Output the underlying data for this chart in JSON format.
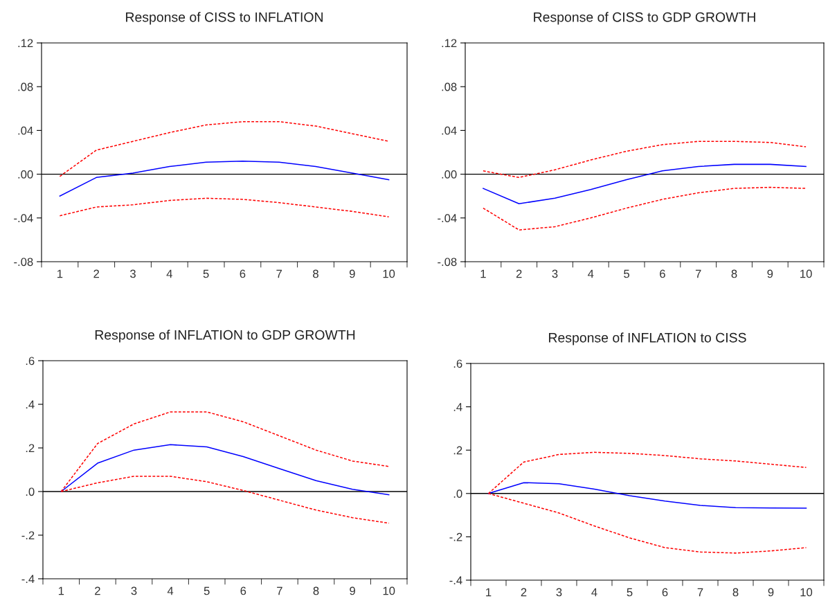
{
  "chart_data": [
    {
      "type": "line",
      "title": "Response of CISS to INFLATION",
      "categories": [
        "1",
        "2",
        "3",
        "4",
        "5",
        "6",
        "7",
        "8",
        "9",
        "10"
      ],
      "series": [
        {
          "color": "#0000ff",
          "line_style": "solid",
          "values": [
            -0.02,
            -0.003,
            0.001,
            0.007,
            0.011,
            0.012,
            0.011,
            0.007,
            0.001,
            -0.005
          ]
        },
        {
          "color": "#ff0000",
          "line_style": "dashed",
          "values": [
            -0.002,
            0.022,
            0.03,
            0.038,
            0.045,
            0.048,
            0.048,
            0.044,
            0.037,
            0.03
          ]
        },
        {
          "color": "#ff0000",
          "line_style": "dashed",
          "values": [
            -0.038,
            -0.03,
            -0.028,
            -0.024,
            -0.022,
            -0.023,
            -0.026,
            -0.03,
            -0.034,
            -0.039
          ]
        }
      ],
      "ylim": [
        -0.08,
        0.12
      ],
      "yticks": [
        {
          "value": -0.08,
          "label": "-.08"
        },
        {
          "value": -0.04,
          "label": "-.04"
        },
        {
          "value": 0,
          "label": ".00"
        },
        {
          "value": 0.04,
          "label": ".04"
        },
        {
          "value": 0.08,
          "label": ".08"
        },
        {
          "value": 0.12,
          "label": ".12"
        }
      ],
      "ref_lines": [
        {
          "axis": "y",
          "value": 0,
          "color": "#000000"
        }
      ],
      "grid": false,
      "legend": false
    },
    {
      "type": "line",
      "title": "Response of CISS to GDP GROWTH",
      "categories": [
        "1",
        "2",
        "3",
        "4",
        "5",
        "6",
        "7",
        "8",
        "9",
        "10"
      ],
      "series": [
        {
          "color": "#0000ff",
          "line_style": "solid",
          "values": [
            -0.013,
            -0.027,
            -0.022,
            -0.014,
            -0.005,
            0.003,
            0.007,
            0.009,
            0.009,
            0.007
          ]
        },
        {
          "color": "#ff0000",
          "line_style": "dashed",
          "values": [
            0.003,
            -0.003,
            0.004,
            0.013,
            0.021,
            0.027,
            0.03,
            0.03,
            0.029,
            0.025
          ]
        },
        {
          "color": "#ff0000",
          "line_style": "dashed",
          "values": [
            -0.031,
            -0.051,
            -0.048,
            -0.04,
            -0.031,
            -0.023,
            -0.017,
            -0.013,
            -0.012,
            -0.013
          ]
        }
      ],
      "ylim": [
        -0.08,
        0.12
      ],
      "yticks": [
        {
          "value": -0.08,
          "label": "-.08"
        },
        {
          "value": -0.04,
          "label": "-.04"
        },
        {
          "value": 0,
          "label": ".00"
        },
        {
          "value": 0.04,
          "label": ".04"
        },
        {
          "value": 0.08,
          "label": ".08"
        },
        {
          "value": 0.12,
          "label": ".12"
        }
      ],
      "ref_lines": [
        {
          "axis": "y",
          "value": 0,
          "color": "#000000"
        }
      ],
      "grid": false,
      "legend": false
    },
    {
      "type": "line",
      "title": "Response of INFLATION to GDP GROWTH",
      "categories": [
        "1",
        "2",
        "3",
        "4",
        "5",
        "6",
        "7",
        "8",
        "9",
        "10"
      ],
      "series": [
        {
          "color": "#0000ff",
          "line_style": "solid",
          "values": [
            0,
            0.13,
            0.19,
            0.215,
            0.205,
            0.16,
            0.105,
            0.05,
            0.01,
            -0.015
          ]
        },
        {
          "color": "#ff0000",
          "line_style": "dashed",
          "values": [
            0,
            0.22,
            0.31,
            0.365,
            0.365,
            0.32,
            0.255,
            0.19,
            0.14,
            0.115
          ]
        },
        {
          "color": "#ff0000",
          "line_style": "dashed",
          "values": [
            0,
            0.04,
            0.07,
            0.07,
            0.045,
            0.005,
            -0.04,
            -0.085,
            -0.12,
            -0.145
          ]
        }
      ],
      "ylim": [
        -0.4,
        0.6
      ],
      "yticks": [
        {
          "value": -0.4,
          "label": "-.4"
        },
        {
          "value": -0.2,
          "label": "-.2"
        },
        {
          "value": 0,
          "label": ".0"
        },
        {
          "value": 0.2,
          "label": ".2"
        },
        {
          "value": 0.4,
          "label": ".4"
        },
        {
          "value": 0.6,
          "label": ".6"
        }
      ],
      "ref_lines": [
        {
          "axis": "y",
          "value": 0,
          "color": "#000000"
        }
      ],
      "grid": false,
      "legend": false
    },
    {
      "type": "line",
      "title": "Response of INFLATION to CISS",
      "categories": [
        "1",
        "2",
        "3",
        "4",
        "5",
        "6",
        "7",
        "8",
        "9",
        "10"
      ],
      "series": [
        {
          "color": "#0000ff",
          "line_style": "solid",
          "values": [
            0,
            0.05,
            0.045,
            0.02,
            -0.01,
            -0.035,
            -0.055,
            -0.065,
            -0.067,
            -0.068
          ]
        },
        {
          "color": "#ff0000",
          "line_style": "dashed",
          "values": [
            0,
            0.145,
            0.18,
            0.19,
            0.185,
            0.175,
            0.16,
            0.15,
            0.135,
            0.12
          ]
        },
        {
          "color": "#ff0000",
          "line_style": "dashed",
          "values": [
            0,
            -0.045,
            -0.09,
            -0.15,
            -0.205,
            -0.25,
            -0.27,
            -0.275,
            -0.265,
            -0.25
          ]
        }
      ],
      "ylim": [
        -0.4,
        0.6
      ],
      "yticks": [
        {
          "value": -0.4,
          "label": "-.4"
        },
        {
          "value": -0.2,
          "label": "-.2"
        },
        {
          "value": 0,
          "label": ".0"
        },
        {
          "value": 0.2,
          "label": ".2"
        },
        {
          "value": 0.4,
          "label": ".4"
        },
        {
          "value": 0.6,
          "label": ".6"
        }
      ],
      "ref_lines": [
        {
          "axis": "y",
          "value": 0,
          "color": "#000000"
        }
      ],
      "grid": false,
      "legend": false
    }
  ]
}
